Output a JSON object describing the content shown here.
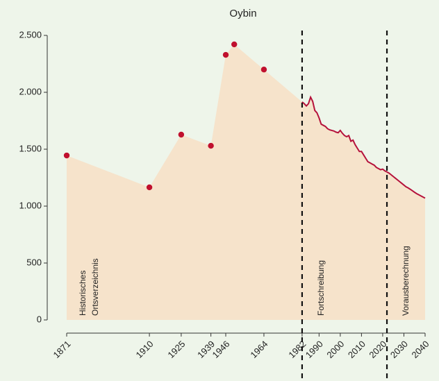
{
  "chart_data": {
    "type": "line",
    "title": "Oybin",
    "xlim": [
      1871,
      2040
    ],
    "xticks": [
      1871,
      1910,
      1925,
      1939,
      1946,
      1964,
      1982,
      1990,
      2000,
      2010,
      2020,
      2030,
      2040
    ],
    "ylim": [
      0,
      2500
    ],
    "yticks": [
      0,
      {
        "value": 500,
        "label": "500"
      },
      {
        "value": 1000,
        "label": "1.000"
      },
      {
        "value": 1500,
        "label": "1.500"
      },
      {
        "value": 2000,
        "label": "2.000"
      },
      {
        "value": 2500,
        "label": "2.500"
      }
    ],
    "area_color": "#f6e3cb",
    "series": [
      {
        "style": "points",
        "color": "#c0102e",
        "x": [
          1871,
          1910,
          1925,
          1939,
          1946,
          1950,
          1964
        ],
        "values": [
          1445,
          1165,
          1628,
          1530,
          2329,
          2421,
          2200
        ]
      },
      {
        "style": "line",
        "color": "#b5123b",
        "x": [
          1982,
          1983,
          1984,
          1985,
          1986,
          1987,
          1988,
          1989,
          1990,
          1991,
          1992,
          1993,
          1994,
          1995,
          1996,
          1997,
          1998,
          1999,
          2000,
          2001,
          2002,
          2003,
          2004,
          2005,
          2006,
          2007,
          2008,
          2009,
          2010,
          2011,
          2012,
          2013,
          2014,
          2015,
          2016,
          2017,
          2018,
          2019,
          2020,
          2021,
          2022,
          2023,
          2024,
          2025,
          2026,
          2027,
          2028,
          2029,
          2030,
          2031,
          2032,
          2033,
          2034,
          2035,
          2036,
          2037,
          2038,
          2039,
          2040
        ],
        "values": [
          1915,
          1900,
          1880,
          1900,
          1957,
          1920,
          1840,
          1820,
          1775,
          1720,
          1710,
          1700,
          1680,
          1670,
          1665,
          1660,
          1650,
          1645,
          1665,
          1640,
          1620,
          1610,
          1620,
          1570,
          1580,
          1540,
          1510,
          1480,
          1480,
          1450,
          1420,
          1390,
          1380,
          1370,
          1360,
          1340,
          1330,
          1320,
          1325,
          1310,
          1300,
          1290,
          1275,
          1260,
          1245,
          1230,
          1215,
          1200,
          1185,
          1170,
          1160,
          1148,
          1135,
          1122,
          1110,
          1100,
          1090,
          1080,
          1070
        ]
      }
    ],
    "vlines": [
      1982,
      2022
    ],
    "annotations": [
      [
        "Historisches",
        "Ortsverzeichnis"
      ],
      [
        "Fortschreibung"
      ],
      [
        "Vorausberechnung"
      ]
    ]
  }
}
